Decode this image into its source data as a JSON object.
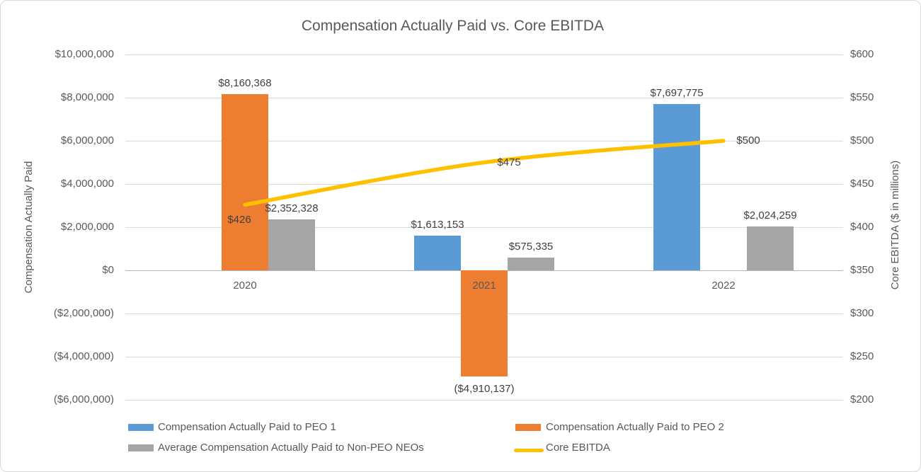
{
  "title": "Compensation Actually Paid vs. Core EBITDA",
  "left_axis": {
    "title": "Compensation Actually Paid",
    "ticks": [
      "$10,000,000",
      "$8,000,000",
      "$6,000,000",
      "$4,000,000",
      "$2,000,000",
      "$0",
      "($2,000,000)",
      "($4,000,000)",
      "($6,000,000)"
    ],
    "min": -6000000,
    "max": 10000000,
    "step": 2000000
  },
  "right_axis": {
    "title": "Core EBITDA ($ in millions)",
    "ticks": [
      "$600",
      "$550",
      "$500",
      "$450",
      "$400",
      "$350",
      "$300",
      "$250",
      "$200"
    ],
    "min": 200,
    "max": 600,
    "step": 50
  },
  "chart_data": {
    "type": "combo",
    "title": "Compensation Actually Paid vs. Core EBITDA",
    "categories": [
      "2020",
      "2021",
      "2022"
    ],
    "series": [
      {
        "name": "Compensation Actually Paid to PEO 1",
        "type": "bar",
        "axis": "left",
        "color": "#5B9BD5",
        "values": [
          null,
          1613153,
          7697775
        ],
        "labels": [
          "",
          "$1,613,153",
          "$7,697,775"
        ]
      },
      {
        "name": "Compensation Actually Paid to PEO 2",
        "type": "bar",
        "axis": "left",
        "color": "#ED7D31",
        "values": [
          8160368,
          -4910137,
          null
        ],
        "labels": [
          "$8,160,368",
          "($4,910,137)",
          ""
        ]
      },
      {
        "name": "Average Compensation Actually Paid to Non-PEO NEOs",
        "type": "bar",
        "axis": "left",
        "color": "#A5A5A5",
        "values": [
          2352328,
          575335,
          2024259
        ],
        "labels": [
          "$2,352,328",
          "$575,335",
          "$2,024,259"
        ]
      },
      {
        "name": "Core EBITDA",
        "type": "line",
        "axis": "right",
        "color": "#FFC000",
        "values": [
          426,
          475,
          500
        ],
        "labels": [
          "$426",
          "$475",
          "$500"
        ],
        "label_positions": [
          "below",
          "right",
          "right"
        ]
      }
    ],
    "xlabel": "",
    "ylabel_left": "Compensation Actually Paid",
    "ylabel_right": "Core EBITDA ($ in millions)",
    "ylim_left": [
      -6000000,
      10000000
    ],
    "ylim_right": [
      200,
      600
    ],
    "grid": true,
    "legend_position": "bottom"
  },
  "colors": {
    "gridline": "#D9D9D9",
    "zero_line": "#B8B8B8",
    "axis_text": "#595959",
    "label_text": "#404040",
    "border": "#D9D9D9",
    "background": "#FFFFFF"
  }
}
